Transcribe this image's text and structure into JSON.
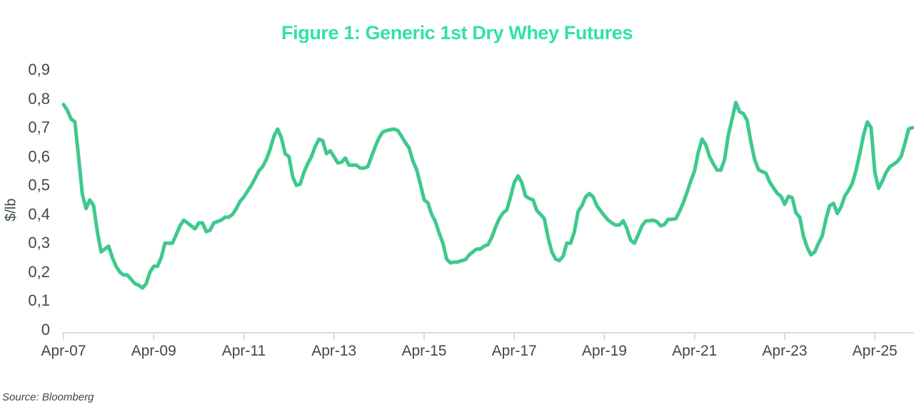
{
  "source": "Source: Bloomberg",
  "colors": {
    "title_accent": "#30e3a1",
    "line": "#3ec98d",
    "text": "#3d4850",
    "axis": "#d8dbdc"
  },
  "chart_data": {
    "type": "line",
    "title": "Figure 1: Generic 1st Dry Whey Futures",
    "xlabel": "",
    "ylabel": "$/lb",
    "ylim": [
      0,
      0.9
    ],
    "grid": false,
    "legend": "none",
    "x_start": "2007-04",
    "x_frequency": "monthly",
    "x_tick_every_months": 24,
    "x_tick_labels": [
      "Apr-07",
      "Apr-09",
      "Apr-11",
      "Apr-13",
      "Apr-15",
      "Apr-17",
      "Apr-19",
      "Apr-21",
      "Apr-23",
      "Apr-25"
    ],
    "y_tick_labels": [
      "0",
      "0,1",
      "0,2",
      "0,3",
      "0,4",
      "0,5",
      "0,6",
      "0,7",
      "0,8",
      "0,9"
    ],
    "series": [
      {
        "name": "Generic 1st Dry Whey Futures ($/lb)",
        "values": [
          0.78,
          0.76,
          0.73,
          0.72,
          0.6,
          0.47,
          0.42,
          0.45,
          0.43,
          0.34,
          0.27,
          0.28,
          0.29,
          0.25,
          0.22,
          0.2,
          0.19,
          0.19,
          0.175,
          0.16,
          0.155,
          0.145,
          0.16,
          0.2,
          0.22,
          0.22,
          0.25,
          0.3,
          0.3,
          0.3,
          0.33,
          0.36,
          0.38,
          0.37,
          0.36,
          0.35,
          0.37,
          0.37,
          0.34,
          0.345,
          0.37,
          0.375,
          0.38,
          0.39,
          0.39,
          0.4,
          0.42,
          0.445,
          0.46,
          0.48,
          0.5,
          0.525,
          0.55,
          0.565,
          0.59,
          0.625,
          0.67,
          0.695,
          0.665,
          0.61,
          0.6,
          0.53,
          0.5,
          0.505,
          0.545,
          0.575,
          0.6,
          0.635,
          0.66,
          0.655,
          0.61,
          0.62,
          0.6,
          0.578,
          0.58,
          0.595,
          0.57,
          0.57,
          0.57,
          0.56,
          0.56,
          0.565,
          0.6,
          0.635,
          0.665,
          0.685,
          0.69,
          0.693,
          0.695,
          0.69,
          0.67,
          0.648,
          0.63,
          0.585,
          0.555,
          0.505,
          0.45,
          0.44,
          0.4,
          0.375,
          0.335,
          0.3,
          0.245,
          0.232,
          0.235,
          0.235,
          0.24,
          0.243,
          0.26,
          0.27,
          0.28,
          0.28,
          0.29,
          0.295,
          0.32,
          0.355,
          0.385,
          0.405,
          0.415,
          0.46,
          0.51,
          0.533,
          0.51,
          0.463,
          0.455,
          0.45,
          0.413,
          0.4,
          0.385,
          0.32,
          0.27,
          0.245,
          0.24,
          0.255,
          0.3,
          0.3,
          0.34,
          0.41,
          0.43,
          0.46,
          0.472,
          0.46,
          0.43,
          0.412,
          0.395,
          0.38,
          0.37,
          0.363,
          0.363,
          0.378,
          0.35,
          0.31,
          0.3,
          0.33,
          0.36,
          0.377,
          0.378,
          0.38,
          0.374,
          0.36,
          0.365,
          0.383,
          0.383,
          0.385,
          0.41,
          0.44,
          0.477,
          0.515,
          0.55,
          0.615,
          0.66,
          0.64,
          0.6,
          0.575,
          0.553,
          0.553,
          0.59,
          0.675,
          0.73,
          0.787,
          0.755,
          0.748,
          0.725,
          0.65,
          0.59,
          0.555,
          0.548,
          0.542,
          0.512,
          0.492,
          0.473,
          0.462,
          0.435,
          0.462,
          0.458,
          0.405,
          0.39,
          0.325,
          0.285,
          0.26,
          0.27,
          0.3,
          0.325,
          0.385,
          0.43,
          0.438,
          0.403,
          0.425,
          0.463,
          0.483,
          0.507,
          0.553,
          0.61,
          0.675,
          0.72,
          0.7,
          0.545,
          0.49,
          0.515,
          0.545,
          0.565,
          0.573,
          0.583,
          0.6,
          0.645,
          0.695,
          0.7
        ]
      }
    ]
  }
}
